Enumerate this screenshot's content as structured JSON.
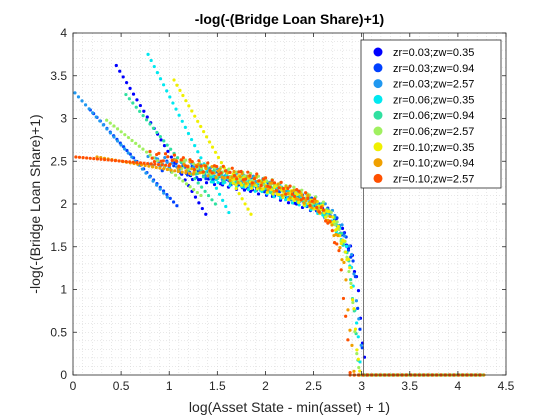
{
  "chart_data": {
    "type": "scatter",
    "title": "-log(-(Bridge Loan Share)+1)",
    "xlabel": "log(Asset State - min(asset) + 1)",
    "ylabel": "-log(-(Bridge Loan Share)+1)",
    "xlim": [
      0,
      4.5
    ],
    "ylim": [
      0,
      4
    ],
    "xticks": [
      0,
      0.5,
      1,
      1.5,
      2,
      2.5,
      3,
      3.5,
      4,
      4.5
    ],
    "xtick_labels": [
      "0",
      "0.5",
      "1",
      "1.5",
      "2",
      "2.5",
      "3",
      "3.5",
      "4",
      "4.5"
    ],
    "yticks": [
      0,
      0.5,
      1,
      1.5,
      2,
      2.5,
      3,
      3.5,
      4
    ],
    "ytick_labels": [
      "0",
      "0.5",
      "1",
      "1.5",
      "2",
      "2.5",
      "3",
      "3.5",
      "4"
    ],
    "grid": "minor-dotted",
    "vertical_line_x": 3.02,
    "legend_position": "top-right",
    "series": [
      {
        "name": "zr=0.03;zw=0.35",
        "color": "#0000ff",
        "segment_start": [
          0.45,
          3.62
        ],
        "segment_end": [
          1.38,
          1.88
        ],
        "tail_x_end": 3.0,
        "drop_x": 3.05
      },
      {
        "name": "zr=0.03;zw=0.94",
        "color": "#0040ff",
        "segment_start": [
          0.18,
          3.1
        ],
        "segment_end": [
          1.08,
          1.98
        ],
        "tail_x_end": 3.0,
        "drop_x": 3.03
      },
      {
        "name": "zr=0.03;zw=2.57",
        "color": "#2098f0",
        "segment_start": [
          0.02,
          3.3
        ],
        "segment_end": [
          0.98,
          2.08
        ],
        "tail_x_end": 3.0,
        "drop_x": 3.02
      },
      {
        "name": "zr=0.06;zw=0.35",
        "color": "#00e8f0",
        "segment_start": [
          0.78,
          3.75
        ],
        "segment_end": [
          1.62,
          1.9
        ],
        "tail_x_end": 3.0,
        "drop_x": 3.0
      },
      {
        "name": "zr=0.06;zw=0.94",
        "color": "#30e0a0",
        "segment_start": [
          0.55,
          3.28
        ],
        "segment_end": [
          1.48,
          2.0
        ],
        "tail_x_end": 2.98,
        "drop_x": 2.98
      },
      {
        "name": "zr=0.06;zw=2.57",
        "color": "#a0f060",
        "segment_start": [
          0.35,
          2.98
        ],
        "segment_end": [
          1.33,
          2.1
        ],
        "tail_x_end": 2.97,
        "drop_x": 2.97
      },
      {
        "name": "zr=0.10;zw=0.35",
        "color": "#f0f000",
        "segment_start": [
          1.05,
          3.45
        ],
        "segment_end": [
          1.85,
          1.88
        ],
        "tail_x_end": 2.98,
        "drop_x": 2.98
      },
      {
        "name": "zr=0.10;zw=0.94",
        "color": "#f0a000",
        "segment_start": [
          0.25,
          2.55
        ],
        "segment_end": [
          1.25,
          2.35
        ],
        "tail_x_end": 2.92,
        "drop_x": 2.92
      },
      {
        "name": "zr=0.10;zw=2.57",
        "color": "#ff5000",
        "segment_start": [
          0.03,
          2.55
        ],
        "segment_end": [
          1.0,
          2.45
        ],
        "tail_x_end": 2.88,
        "drop_x": 2.88
      }
    ]
  }
}
